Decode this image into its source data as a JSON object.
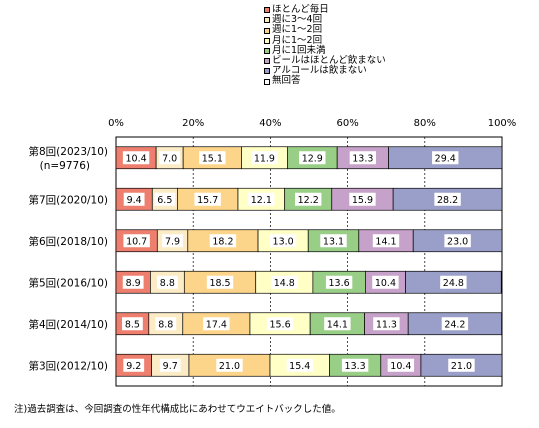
{
  "chart_data": {
    "type": "bar",
    "orientation": "horizontal",
    "stacked": "percent",
    "title": "",
    "xlim": [
      0,
      100
    ],
    "x_ticks": [
      "0%",
      "20%",
      "40%",
      "60%",
      "80%",
      "100%"
    ],
    "categories": [
      {
        "label": "第8回(2023/10)",
        "sublabel": "(n=9776)"
      },
      {
        "label": "第7回(2020/10)",
        "sublabel": ""
      },
      {
        "label": "第6回(2018/10)",
        "sublabel": ""
      },
      {
        "label": "第5回(2016/10)",
        "sublabel": ""
      },
      {
        "label": "第4回(2014/10)",
        "sublabel": ""
      },
      {
        "label": "第3回(2012/10)",
        "sublabel": ""
      }
    ],
    "series": [
      {
        "name": "ほとんど毎日",
        "color": "#ee7f6e",
        "values": [
          10.4,
          9.4,
          10.7,
          8.9,
          8.5,
          9.2
        ]
      },
      {
        "name": "週に3～4回",
        "color": "#fcecc6",
        "values": [
          7.0,
          6.5,
          7.9,
          8.8,
          8.8,
          9.7
        ]
      },
      {
        "name": "週に1～2回",
        "color": "#fdd58a",
        "values": [
          15.1,
          15.7,
          18.2,
          18.5,
          17.4,
          21.0
        ]
      },
      {
        "name": "月に1～2回",
        "color": "#ffffc6",
        "values": [
          11.9,
          12.1,
          13.0,
          14.8,
          15.6,
          15.4
        ]
      },
      {
        "name": "月に1回未満",
        "color": "#99ce86",
        "values": [
          12.9,
          12.2,
          13.1,
          13.6,
          14.1,
          13.3
        ]
      },
      {
        "name": "ビールはほとんど飲まない",
        "color": "#c6a1c9",
        "values": [
          13.3,
          15.9,
          14.1,
          10.4,
          11.3,
          10.4
        ]
      },
      {
        "name": "アルコールは飲まない",
        "color": "#9a9fc9",
        "values": [
          29.4,
          28.2,
          23.0,
          24.8,
          24.2,
          21.0
        ]
      },
      {
        "name": "無回答",
        "color": "#ffffff",
        "values": [
          0,
          0,
          0,
          0,
          0,
          0
        ]
      }
    ],
    "value_labels": [
      [
        "10.4",
        "7.0",
        "15.1",
        "11.9",
        "12.9",
        "13.3",
        "29.4"
      ],
      [
        "9.4",
        "6.5",
        "15.7",
        "12.1",
        "12.2",
        "15.9",
        "28.2"
      ],
      [
        "10.7",
        "7.9",
        "18.2",
        "13.0",
        "13.1",
        "14.1",
        "23.0"
      ],
      [
        "8.9",
        "8.8",
        "18.5",
        "14.8",
        "13.6",
        "10.4",
        "24.8"
      ],
      [
        "8.5",
        "8.8",
        "17.4",
        "15.6",
        "14.1",
        "11.3",
        "24.2"
      ],
      [
        "9.2",
        "9.7",
        "21.0",
        "15.4",
        "13.3",
        "10.4",
        "21.0"
      ]
    ],
    "grid": true,
    "legend_position": "top"
  },
  "note": "注)過去調査は、今回調査の性年代構成比にあわせてウエイトバックした値。"
}
